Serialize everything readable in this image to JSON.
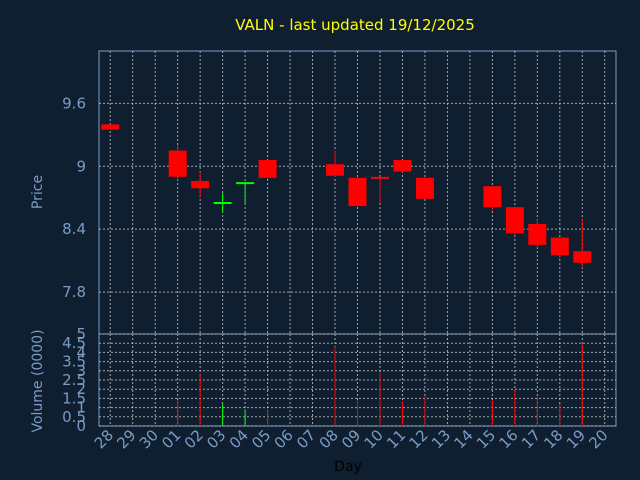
{
  "chart_data": {
    "type": "candlestick",
    "title": "VALN - last updated 19/12/2025",
    "xlabel": "Day",
    "ylabel_price": "Price",
    "ylabel_volume": "Volume (0000)",
    "x_ticks": [
      "28",
      "29",
      "30",
      "01",
      "02",
      "03",
      "04",
      "05",
      "06",
      "07",
      "08",
      "09",
      "10",
      "11",
      "12",
      "13",
      "14",
      "15",
      "16",
      "17",
      "18",
      "19",
      "20"
    ],
    "price_axis": {
      "ylim": [
        7.4,
        10.1
      ],
      "ticks": [
        "9.6",
        "9",
        "8.4",
        "7.8"
      ],
      "tick_values": [
        9.6,
        9.0,
        8.4,
        7.8
      ]
    },
    "volume_axis": {
      "ylim": [
        0,
        5
      ],
      "ticks": [
        "0",
        "0.5",
        "1",
        "1.5",
        "2",
        "2.5",
        "3",
        "3.5",
        "4",
        "4.5",
        "5"
      ],
      "tick_values": [
        0,
        0.5,
        1,
        1.5,
        2,
        2.5,
        3,
        3.5,
        4,
        4.5,
        5
      ]
    },
    "grid": true,
    "colors": {
      "up": "#00ff00",
      "down": "#ff0000",
      "grid": "#c8c8c8",
      "axis": "#7a9cc4",
      "background": "#0f1f30",
      "plot": "#0f1f30"
    },
    "candles": [
      {
        "day": "28",
        "open": 9.4,
        "high": 9.4,
        "low": 9.35,
        "close": 9.35,
        "volume": 0.0
      },
      {
        "day": "01",
        "open": 9.15,
        "high": 9.2,
        "low": 8.87,
        "close": 8.9,
        "volume": 1.4
      },
      {
        "day": "02",
        "open": 8.86,
        "high": 8.95,
        "low": 8.7,
        "close": 8.79,
        "volume": 2.8
      },
      {
        "day": "03",
        "open": 8.64,
        "high": 8.75,
        "low": 8.56,
        "close": 8.65,
        "volume": 1.2
      },
      {
        "day": "04",
        "open": 8.83,
        "high": 8.85,
        "low": 8.65,
        "close": 8.84,
        "volume": 0.9
      },
      {
        "day": "05",
        "open": 9.06,
        "high": 9.06,
        "low": 8.88,
        "close": 8.89,
        "volume": 0.9
      },
      {
        "day": "08",
        "open": 9.02,
        "high": 9.15,
        "low": 8.9,
        "close": 8.91,
        "volume": 4.3
      },
      {
        "day": "09",
        "open": 8.89,
        "high": 8.89,
        "low": 8.62,
        "close": 8.62,
        "volume": 1.4
      },
      {
        "day": "10",
        "open": 8.89,
        "high": 8.89,
        "low": 8.65,
        "close": 8.88,
        "volume": 2.9
      },
      {
        "day": "11",
        "open": 9.06,
        "high": 9.06,
        "low": 8.94,
        "close": 8.95,
        "volume": 1.3
      },
      {
        "day": "12",
        "open": 8.89,
        "high": 8.89,
        "low": 8.69,
        "close": 8.69,
        "volume": 1.6
      },
      {
        "day": "15",
        "open": 8.81,
        "high": 8.81,
        "low": 8.58,
        "close": 8.61,
        "volume": 1.4
      },
      {
        "day": "16",
        "open": 8.61,
        "high": 8.61,
        "low": 8.35,
        "close": 8.36,
        "volume": 2.0
      },
      {
        "day": "17",
        "open": 8.45,
        "high": 8.5,
        "low": 8.22,
        "close": 8.25,
        "volume": 1.6
      },
      {
        "day": "18",
        "open": 8.32,
        "high": 8.32,
        "low": 8.12,
        "close": 8.15,
        "volume": 1.2
      },
      {
        "day": "19",
        "open": 8.19,
        "high": 8.5,
        "low": 8.03,
        "close": 8.08,
        "volume": 4.5
      }
    ]
  }
}
